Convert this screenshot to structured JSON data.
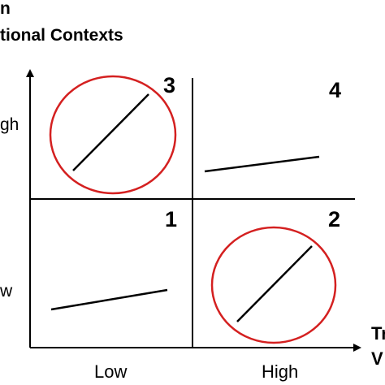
{
  "header": {
    "title_line1": "n",
    "title_line2": "tional Contexts"
  },
  "axes": {
    "y_high_label": "gh",
    "y_low_label": "w",
    "x_low_label": "Low",
    "x_high_label": "High",
    "x_title_line1": "Tr",
    "x_title_line2": "V"
  },
  "quadrants": [
    {
      "number": "1",
      "slope": "shallow",
      "circled": false
    },
    {
      "number": "2",
      "slope": "steep",
      "circled": true
    },
    {
      "number": "3",
      "slope": "steep",
      "circled": true
    },
    {
      "number": "4",
      "slope": "shallow",
      "circled": false
    }
  ],
  "colors": {
    "circle": "#d42020",
    "line": "#000000",
    "axis": "#000000"
  }
}
